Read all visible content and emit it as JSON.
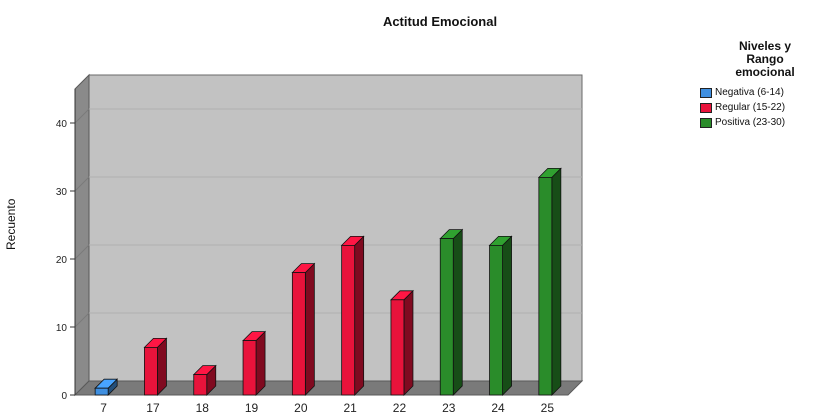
{
  "chart_data": {
    "type": "bar",
    "title": "Actitud Emocional",
    "xlabel": "",
    "ylabel": "Recuento",
    "ylim": [
      0,
      45
    ],
    "yticks": [
      0,
      10,
      20,
      30,
      40
    ],
    "categories": [
      "7",
      "17",
      "18",
      "19",
      "20",
      "21",
      "22",
      "23",
      "24",
      "25"
    ],
    "values": [
      1,
      7,
      3,
      8,
      18,
      22,
      14,
      23,
      22,
      32
    ],
    "groups": [
      "Negativa (6-14)",
      "Regular (15-22)",
      "Regular (15-22)",
      "Regular (15-22)",
      "Regular (15-22)",
      "Regular (15-22)",
      "Regular (15-22)",
      "Positiva (23-30)",
      "Positiva (23-30)",
      "Positiva (23-30)"
    ],
    "legend_title_lines": [
      "Niveles y",
      "Rango",
      "emocional"
    ],
    "legend_position": "right",
    "legend": [
      {
        "label": "Negativa (6-14)",
        "color": "#3f8fe0"
      },
      {
        "label": "Regular (15-22)",
        "color": "#e8133b"
      },
      {
        "label": "Positiva (23-30)",
        "color": "#2a8c2a"
      }
    ],
    "grid": true
  }
}
